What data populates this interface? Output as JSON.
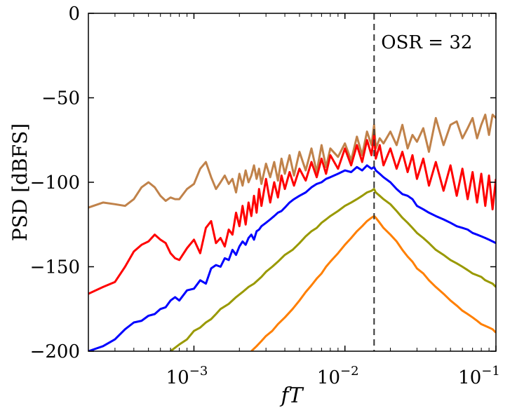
{
  "chart_data": {
    "type": "line",
    "title": "",
    "xlabel": "fT",
    "ylabel": "PSD [dBFS]",
    "xscale": "log",
    "xlim": [
      0.0002,
      0.1
    ],
    "ylim": [
      -200,
      0
    ],
    "x_ticks": [
      {
        "value": 0.001,
        "base": "10",
        "exp": "−3"
      },
      {
        "value": 0.01,
        "base": "10",
        "exp": "−2"
      },
      {
        "value": 0.1,
        "base": "10",
        "exp": "−1"
      }
    ],
    "y_ticks": [
      {
        "value": 0,
        "label": "0"
      },
      {
        "value": -50,
        "label": "−50"
      },
      {
        "value": -100,
        "label": "−100"
      },
      {
        "value": -150,
        "label": "−150"
      },
      {
        "value": -200,
        "label": "−200"
      }
    ],
    "annotation": {
      "x": 0.0156,
      "label": "OSR = 32",
      "style": "dashed-vertical"
    },
    "grid": false,
    "series": [
      {
        "color": "#c0824a",
        "x": [
          0.0002,
          0.00025,
          0.0003,
          0.00035,
          0.0004,
          0.00045,
          0.0005,
          0.00055,
          0.0006,
          0.00065,
          0.0007,
          0.00075,
          0.0008,
          0.0009,
          0.001,
          0.0011,
          0.0012,
          0.0013,
          0.0014,
          0.0015,
          0.0016,
          0.0017,
          0.0018,
          0.0019,
          0.002,
          0.0021,
          0.0022,
          0.0023,
          0.0024,
          0.0025,
          0.0026,
          0.0027,
          0.0028,
          0.003,
          0.0032,
          0.0034,
          0.0036,
          0.0038,
          0.004,
          0.0043,
          0.0046,
          0.005,
          0.0055,
          0.006,
          0.0065,
          0.007,
          0.0075,
          0.008,
          0.009,
          0.01,
          0.011,
          0.012,
          0.013,
          0.014,
          0.015,
          0.0156,
          0.016,
          0.017,
          0.018,
          0.02,
          0.022,
          0.024,
          0.026,
          0.028,
          0.03,
          0.033,
          0.036,
          0.04,
          0.045,
          0.05,
          0.055,
          0.06,
          0.065,
          0.07,
          0.075,
          0.08,
          0.085,
          0.09,
          0.095,
          0.1
        ],
        "y": [
          -115,
          -112,
          -113,
          -114,
          -110,
          -103,
          -100,
          -103,
          -108,
          -111,
          -109,
          -110,
          -110,
          -104,
          -101,
          -92,
          -88,
          -97,
          -104,
          -100,
          -96,
          -101,
          -98,
          -106,
          -95,
          -102,
          -93,
          -100,
          -96,
          -90,
          -98,
          -92,
          -101,
          -89,
          -97,
          -88,
          -99,
          -86,
          -95,
          -84,
          -96,
          -82,
          -93,
          -80,
          -94,
          -78,
          -91,
          -80,
          -85,
          -77,
          -87,
          -73,
          -84,
          -70,
          -78,
          -66,
          -80,
          -74,
          -77,
          -70,
          -78,
          -66,
          -80,
          -72,
          -76,
          -68,
          -82,
          -62,
          -78,
          -66,
          -64,
          -74,
          -68,
          -62,
          -74,
          -66,
          -60,
          -72,
          -60,
          -62
        ]
      },
      {
        "color": "#ff0000",
        "x": [
          0.0002,
          0.00025,
          0.0003,
          0.00035,
          0.0004,
          0.00045,
          0.0005,
          0.00055,
          0.0006,
          0.00065,
          0.0007,
          0.00075,
          0.0008,
          0.0009,
          0.001,
          0.0011,
          0.0012,
          0.0013,
          0.0014,
          0.0015,
          0.0016,
          0.0017,
          0.0018,
          0.0019,
          0.002,
          0.0021,
          0.0022,
          0.0023,
          0.0024,
          0.0025,
          0.0026,
          0.0027,
          0.0028,
          0.003,
          0.0032,
          0.0034,
          0.0036,
          0.0038,
          0.004,
          0.0043,
          0.0046,
          0.005,
          0.0055,
          0.006,
          0.0065,
          0.007,
          0.0075,
          0.008,
          0.009,
          0.01,
          0.011,
          0.012,
          0.013,
          0.014,
          0.015,
          0.0156,
          0.016,
          0.017,
          0.018,
          0.02,
          0.022,
          0.024,
          0.026,
          0.028,
          0.03,
          0.033,
          0.036,
          0.04,
          0.045,
          0.05,
          0.055,
          0.06,
          0.065,
          0.07,
          0.075,
          0.08,
          0.085,
          0.09,
          0.095,
          0.1
        ],
        "y": [
          -166,
          -162,
          -159,
          -150,
          -141,
          -137,
          -135,
          -131,
          -134,
          -136,
          -142,
          -145,
          -146,
          -139,
          -134,
          -142,
          -127,
          -123,
          -136,
          -133,
          -138,
          -128,
          -131,
          -118,
          -126,
          -114,
          -125,
          -112,
          -120,
          -108,
          -118,
          -104,
          -114,
          -98,
          -112,
          -100,
          -109,
          -96,
          -104,
          -94,
          -102,
          -92,
          -99,
          -88,
          -97,
          -86,
          -95,
          -84,
          -92,
          -80,
          -90,
          -78,
          -88,
          -75,
          -84,
          -72,
          -86,
          -78,
          -90,
          -80,
          -92,
          -82,
          -94,
          -84,
          -98,
          -86,
          -102,
          -88,
          -105,
          -90,
          -108,
          -92,
          -110,
          -94,
          -112,
          -95,
          -114,
          -96,
          -116,
          -98
        ]
      },
      {
        "color": "#0000ff",
        "x": [
          0.0002,
          0.00025,
          0.0003,
          0.00035,
          0.0004,
          0.00045,
          0.0005,
          0.00055,
          0.0006,
          0.00065,
          0.0007,
          0.00075,
          0.0008,
          0.0009,
          0.001,
          0.0011,
          0.0012,
          0.0013,
          0.0014,
          0.0015,
          0.0016,
          0.0017,
          0.0018,
          0.0019,
          0.002,
          0.0021,
          0.0022,
          0.0023,
          0.0024,
          0.0025,
          0.0026,
          0.0027,
          0.0028,
          0.003,
          0.0032,
          0.0034,
          0.0036,
          0.0038,
          0.004,
          0.0043,
          0.0046,
          0.005,
          0.0055,
          0.006,
          0.0065,
          0.007,
          0.0075,
          0.008,
          0.009,
          0.01,
          0.011,
          0.012,
          0.013,
          0.014,
          0.015,
          0.0156,
          0.016,
          0.017,
          0.018,
          0.02,
          0.022,
          0.024,
          0.026,
          0.028,
          0.03,
          0.033,
          0.036,
          0.04,
          0.045,
          0.05,
          0.055,
          0.06,
          0.065,
          0.07,
          0.075,
          0.08,
          0.085,
          0.09,
          0.095,
          0.1
        ],
        "y": [
          -200,
          -197,
          -193,
          -187,
          -183,
          -182,
          -179,
          -178,
          -175,
          -174,
          -170,
          -168,
          -170,
          -164,
          -163,
          -158,
          -160,
          -151,
          -149,
          -150,
          -145,
          -146,
          -140,
          -143,
          -138,
          -135,
          -137,
          -133,
          -131,
          -134,
          -129,
          -128,
          -126,
          -124,
          -122,
          -120,
          -118,
          -117,
          -115,
          -112,
          -110,
          -108,
          -106,
          -103,
          -101,
          -100,
          -98,
          -97,
          -95,
          -93,
          -94,
          -91,
          -93,
          -90,
          -92,
          -91,
          -93,
          -95,
          -97,
          -100,
          -104,
          -107,
          -108,
          -110,
          -114,
          -116,
          -118,
          -120,
          -122,
          -124,
          -126,
          -127,
          -128,
          -130,
          -131,
          -132,
          -133,
          -134,
          -135,
          -136
        ]
      },
      {
        "color": "#999900",
        "x": [
          0.0007,
          0.0008,
          0.0009,
          0.001,
          0.0011,
          0.0012,
          0.0013,
          0.0014,
          0.0015,
          0.0017,
          0.0019,
          0.0021,
          0.0023,
          0.0025,
          0.0028,
          0.003,
          0.0033,
          0.0036,
          0.004,
          0.0045,
          0.005,
          0.0055,
          0.006,
          0.0065,
          0.007,
          0.0075,
          0.008,
          0.009,
          0.01,
          0.011,
          0.012,
          0.013,
          0.014,
          0.015,
          0.0156,
          0.016,
          0.017,
          0.018,
          0.02,
          0.022,
          0.024,
          0.026,
          0.028,
          0.03,
          0.033,
          0.036,
          0.04,
          0.045,
          0.05,
          0.055,
          0.06,
          0.065,
          0.07,
          0.075,
          0.08,
          0.085,
          0.09,
          0.095,
          0.1
        ],
        "y": [
          -200,
          -196,
          -193,
          -188,
          -186,
          -183,
          -181,
          -178,
          -175,
          -172,
          -168,
          -165,
          -162,
          -160,
          -156,
          -153,
          -150,
          -147,
          -143,
          -140,
          -136,
          -132,
          -129,
          -127,
          -124,
          -122,
          -120,
          -117,
          -114,
          -112,
          -110,
          -108,
          -106,
          -105,
          -104,
          -106,
          -108,
          -110,
          -113,
          -117,
          -121,
          -124,
          -127,
          -130,
          -133,
          -136,
          -140,
          -143,
          -146,
          -148,
          -150,
          -152,
          -154,
          -155,
          -156,
          -158,
          -159,
          -160,
          -162
        ]
      },
      {
        "color": "#ff7f00",
        "x": [
          0.0024,
          0.0026,
          0.0028,
          0.003,
          0.0033,
          0.0036,
          0.004,
          0.0045,
          0.005,
          0.0055,
          0.006,
          0.0065,
          0.007,
          0.0075,
          0.008,
          0.009,
          0.01,
          0.011,
          0.012,
          0.013,
          0.014,
          0.015,
          0.0156,
          0.016,
          0.017,
          0.018,
          0.02,
          0.022,
          0.024,
          0.026,
          0.028,
          0.03,
          0.033,
          0.036,
          0.04,
          0.045,
          0.05,
          0.055,
          0.06,
          0.065,
          0.07,
          0.075,
          0.08,
          0.085,
          0.09,
          0.095,
          0.1
        ],
        "y": [
          -200,
          -197,
          -194,
          -191,
          -188,
          -184,
          -180,
          -175,
          -170,
          -165,
          -161,
          -157,
          -154,
          -150,
          -147,
          -142,
          -137,
          -133,
          -129,
          -126,
          -123,
          -121,
          -120,
          -121,
          -124,
          -127,
          -131,
          -135,
          -140,
          -144,
          -147,
          -151,
          -154,
          -158,
          -162,
          -166,
          -170,
          -173,
          -176,
          -178,
          -180,
          -182,
          -184,
          -185,
          -186,
          -187,
          -189
        ]
      }
    ]
  }
}
